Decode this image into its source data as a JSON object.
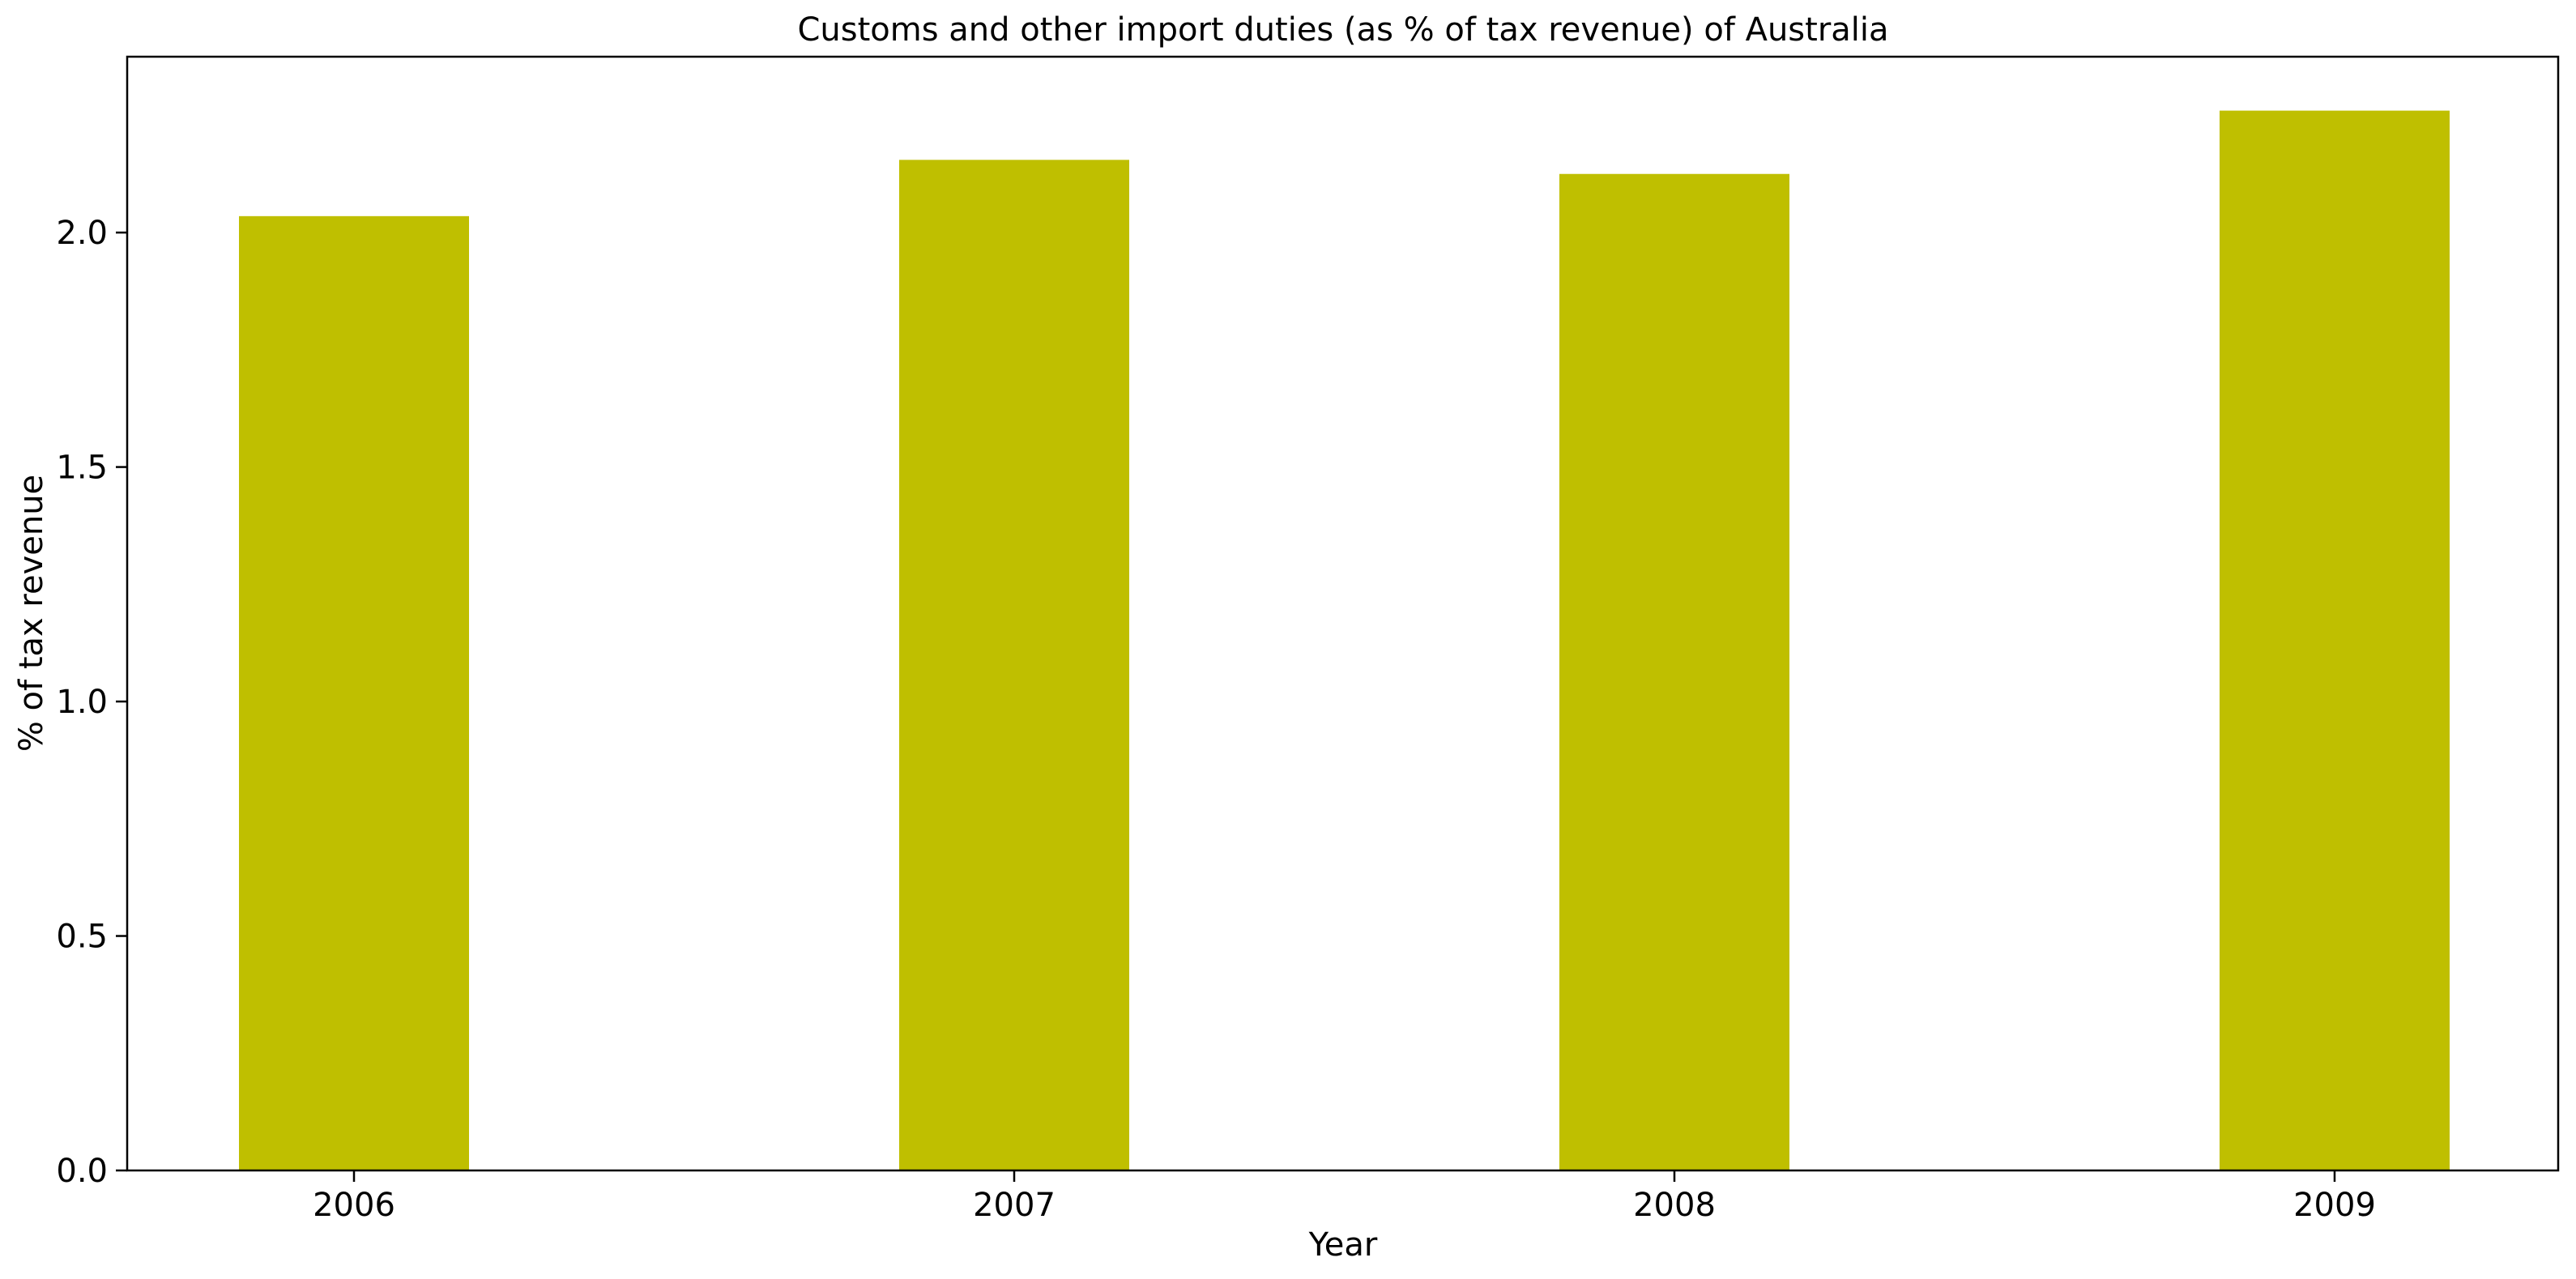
{
  "chart_data": {
    "type": "bar",
    "title": "Customs and other import duties (as % of tax revenue) of Australia",
    "xlabel": "Year",
    "ylabel": "% of tax revenue",
    "categories": [
      "2006",
      "2007",
      "2008",
      "2009"
    ],
    "values": [
      2.035,
      2.155,
      2.125,
      2.26
    ],
    "ylim": [
      0,
      2.375
    ],
    "yticks": [
      0.0,
      0.5,
      1.0,
      1.5,
      2.0
    ],
    "ytick_labels": [
      "0.0",
      "0.5",
      "1.0",
      "1.5",
      "2.0"
    ],
    "bar_color": "#bfbf00",
    "grid": false,
    "legend": "none"
  }
}
